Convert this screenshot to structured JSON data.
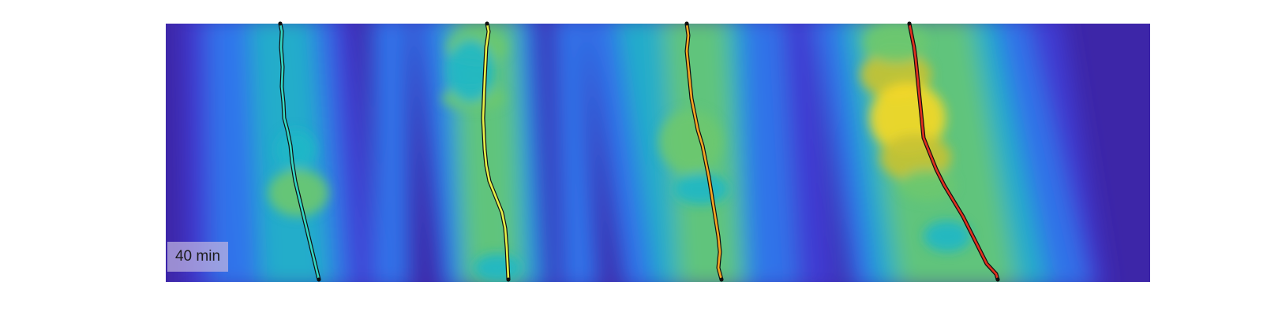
{
  "image": {
    "description_colormap": "parula",
    "kymograph": {
      "background_color": "#3d26a8",
      "band_colors": [
        "#3d26a8",
        "#3f3fdb",
        "#2e80f5",
        "#20b7c6",
        "#6dc86e",
        "#c8c232",
        "#f7d823"
      ]
    },
    "scale_label": "40 min",
    "tracks": [
      {
        "name": "track-1",
        "color": "#33d6c4"
      },
      {
        "name": "track-2",
        "color": "#e6f04a"
      },
      {
        "name": "track-3",
        "color": "#f5a623"
      },
      {
        "name": "track-4",
        "color": "#e0301e"
      }
    ]
  }
}
